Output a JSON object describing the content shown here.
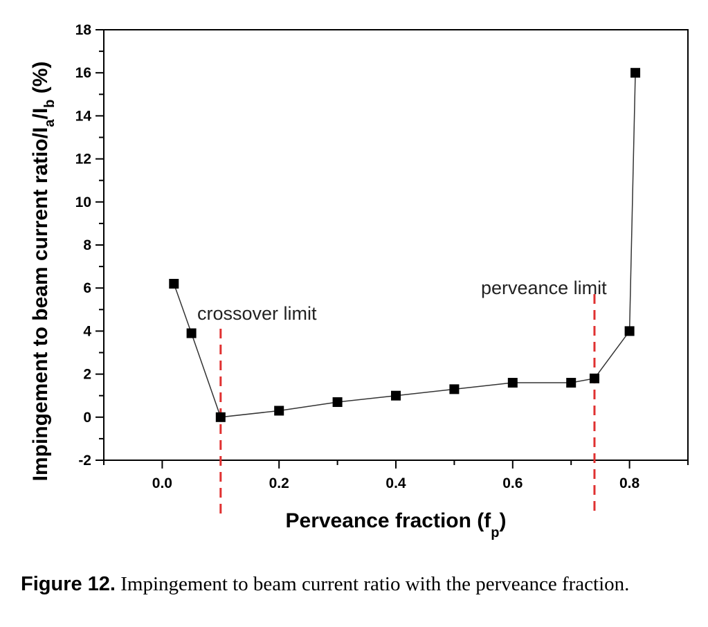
{
  "chart_data": {
    "type": "line",
    "xlabel_main": "Perveance fraction (f",
    "xlabel_sub": "p",
    "xlabel_tail": ")",
    "ylabel_parts": [
      "Impingement to beam current ratio/I",
      "a",
      "/I",
      "b",
      " (%)"
    ],
    "xlim": [
      -0.1,
      0.9
    ],
    "ylim": [
      -2,
      18
    ],
    "xticks": [
      "0.0",
      "0.2",
      "0.4",
      "0.6",
      "0.8"
    ],
    "yticks": [
      "-2",
      "0",
      "2",
      "4",
      "6",
      "8",
      "10",
      "12",
      "14",
      "16",
      "18"
    ],
    "series": [
      {
        "x": [
          0.02,
          0.05,
          0.1,
          0.2,
          0.3,
          0.4,
          0.5,
          0.6,
          0.7,
          0.74,
          0.8,
          0.81
        ],
        "y": [
          6.2,
          3.9,
          0.0,
          0.3,
          0.7,
          1.0,
          1.3,
          1.6,
          1.6,
          1.8,
          4.0,
          16.0
        ],
        "color": "#000000",
        "marker": "square"
      }
    ],
    "reference_lines": [
      {
        "x": 0.1,
        "label": "crossover limit",
        "color": "#e03030",
        "style": "dashed"
      },
      {
        "x": 0.74,
        "label": "perveance limit",
        "color": "#e03030",
        "style": "dashed"
      }
    ]
  },
  "caption": {
    "label": "Figure 12.",
    "text": " Impingement to beam current ratio with the perveance fraction."
  }
}
